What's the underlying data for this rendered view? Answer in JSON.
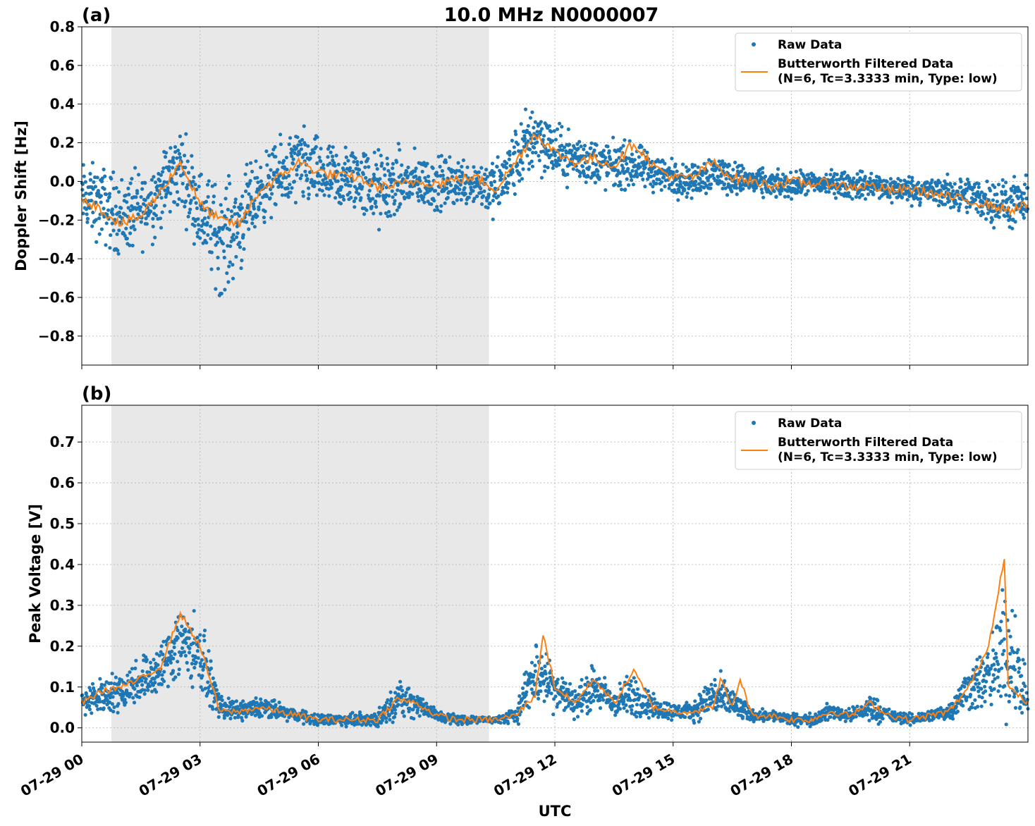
{
  "figure": {
    "title": "10.0 MHz N0000007",
    "xlabel": "UTC"
  },
  "legend": {
    "raw_label": "Raw Data",
    "filtered_line1": "Butterworth Filtered Data",
    "filtered_line2": "(N=6, Tc=3.3333 min, Type: low)"
  },
  "colors": {
    "raw": "#1f77b4",
    "filtered": "#ff7f0e",
    "shade": "#e8e8e8",
    "grid": "#b0b0b0"
  },
  "chart_data": [
    {
      "type": "scatter",
      "panel_label": "(a)",
      "title": "10.0 MHz N0000007",
      "ylabel": "Doppler Shift [Hz]",
      "xlabel": "",
      "xlim": [
        0,
        24
      ],
      "ylim": [
        -0.95,
        0.8
      ],
      "x_unit": "hours UTC on 07-29",
      "yticks": [
        -0.8,
        -0.6,
        -0.4,
        -0.2,
        0.0,
        0.2,
        0.4,
        0.6,
        0.8
      ],
      "ytick_labels": [
        "−0.8",
        "−0.6",
        "−0.4",
        "−0.2",
        "0.0",
        "0.2",
        "0.4",
        "0.6",
        "0.8"
      ],
      "shaded_interval": [
        0.75,
        10.33
      ],
      "grid": true,
      "legend_position": "top-right",
      "series": [
        {
          "name": "Raw Data",
          "style": "points",
          "color": "#1f77b4",
          "x": [
            0.0,
            0.5,
            1.0,
            1.5,
            2.0,
            2.5,
            3.0,
            3.5,
            4.0,
            4.5,
            5.0,
            5.5,
            6.0,
            6.5,
            7.0,
            7.5,
            8.0,
            8.5,
            9.0,
            9.5,
            10.0,
            10.5,
            11.0,
            11.5,
            12.0,
            12.5,
            13.0,
            13.5,
            14.0,
            14.5,
            15.0,
            15.5,
            16.0,
            16.5,
            17.0,
            17.5,
            18.0,
            18.5,
            19.0,
            19.5,
            20.0,
            20.5,
            21.0,
            21.5,
            22.0,
            22.5,
            23.0,
            23.5,
            24.0
          ],
          "center": [
            -0.08,
            -0.12,
            -0.18,
            -0.15,
            -0.05,
            0.08,
            -0.15,
            -0.3,
            -0.22,
            -0.05,
            0.02,
            0.08,
            0.04,
            0.0,
            0.02,
            -0.05,
            -0.02,
            0.0,
            -0.02,
            0.0,
            0.0,
            -0.05,
            0.1,
            0.25,
            0.15,
            0.12,
            0.1,
            0.08,
            0.08,
            0.05,
            0.02,
            0.0,
            0.05,
            0.02,
            0.0,
            -0.02,
            -0.02,
            -0.01,
            -0.01,
            -0.02,
            -0.02,
            -0.04,
            -0.04,
            -0.05,
            -0.06,
            -0.08,
            -0.1,
            -0.12,
            -0.12
          ],
          "spread": [
            0.25,
            0.28,
            0.3,
            0.28,
            0.28,
            0.3,
            0.3,
            0.4,
            0.35,
            0.25,
            0.25,
            0.3,
            0.25,
            0.25,
            0.25,
            0.3,
            0.25,
            0.2,
            0.2,
            0.18,
            0.18,
            0.22,
            0.25,
            0.28,
            0.2,
            0.18,
            0.18,
            0.18,
            0.16,
            0.15,
            0.13,
            0.12,
            0.15,
            0.12,
            0.1,
            0.1,
            0.09,
            0.09,
            0.09,
            0.1,
            0.1,
            0.1,
            0.1,
            0.1,
            0.12,
            0.14,
            0.16,
            0.18,
            0.18
          ]
        },
        {
          "name": "Butterworth Filtered Data\n(N=6, Tc=3.3333 min, Type: low)",
          "style": "line",
          "color": "#ff7f0e",
          "x": [
            0.0,
            0.5,
            1.0,
            1.5,
            2.0,
            2.5,
            3.0,
            3.5,
            4.0,
            4.5,
            5.0,
            5.5,
            6.0,
            6.5,
            7.0,
            7.5,
            8.0,
            8.5,
            9.0,
            9.5,
            10.0,
            10.5,
            11.0,
            11.5,
            12.0,
            12.5,
            13.0,
            13.5,
            14.0,
            14.5,
            15.0,
            15.5,
            16.0,
            16.5,
            17.0,
            17.5,
            18.0,
            18.5,
            19.0,
            19.5,
            20.0,
            20.5,
            21.0,
            21.5,
            22.0,
            22.5,
            23.0,
            23.5,
            24.0
          ],
          "y": [
            -0.08,
            -0.15,
            -0.22,
            -0.18,
            -0.05,
            0.1,
            -0.12,
            -0.2,
            -0.22,
            -0.05,
            0.02,
            0.1,
            0.05,
            0.03,
            0.02,
            -0.03,
            -0.02,
            0.0,
            -0.01,
            0.01,
            0.02,
            -0.04,
            0.1,
            0.25,
            0.15,
            0.1,
            0.12,
            0.08,
            0.2,
            0.08,
            0.02,
            0.02,
            0.1,
            0.02,
            0.0,
            -0.02,
            0.0,
            -0.01,
            -0.01,
            -0.03,
            -0.02,
            -0.05,
            -0.04,
            -0.06,
            -0.08,
            -0.1,
            -0.12,
            -0.15,
            -0.12
          ]
        }
      ]
    },
    {
      "type": "scatter",
      "panel_label": "(b)",
      "title": "",
      "ylabel": "Peak Voltage [V]",
      "xlabel": "UTC",
      "xlim": [
        0,
        24
      ],
      "ylim": [
        -0.035,
        0.79
      ],
      "x_unit": "hours UTC on 07-29",
      "xticks": [
        0,
        3,
        6,
        9,
        12,
        15,
        18,
        21
      ],
      "xtick_labels": [
        "07-29 00",
        "07-29 03",
        "07-29 06",
        "07-29 09",
        "07-29 12",
        "07-29 15",
        "07-29 18",
        "07-29 21"
      ],
      "yticks": [
        0.0,
        0.1,
        0.2,
        0.3,
        0.4,
        0.5,
        0.6,
        0.7
      ],
      "ytick_labels": [
        "0.0",
        "0.1",
        "0.2",
        "0.3",
        "0.4",
        "0.5",
        "0.6",
        "0.7"
      ],
      "shaded_interval": [
        0.75,
        10.33
      ],
      "grid": true,
      "legend_position": "top-right",
      "series": [
        {
          "name": "Raw Data",
          "style": "points",
          "color": "#1f77b4",
          "x": [
            0.0,
            0.5,
            1.0,
            1.5,
            2.0,
            2.5,
            3.0,
            3.5,
            4.0,
            4.5,
            5.0,
            5.5,
            6.0,
            6.5,
            7.0,
            7.5,
            8.0,
            8.5,
            9.0,
            9.5,
            10.0,
            10.5,
            11.0,
            11.5,
            12.0,
            12.5,
            13.0,
            13.5,
            14.0,
            14.5,
            15.0,
            15.5,
            16.0,
            16.5,
            17.0,
            17.5,
            18.0,
            18.5,
            19.0,
            19.5,
            20.0,
            20.5,
            21.0,
            21.5,
            22.0,
            22.5,
            23.0,
            23.5,
            24.0
          ],
          "center": [
            0.06,
            0.08,
            0.09,
            0.12,
            0.14,
            0.22,
            0.18,
            0.05,
            0.04,
            0.05,
            0.04,
            0.03,
            0.02,
            0.02,
            0.02,
            0.02,
            0.07,
            0.06,
            0.03,
            0.02,
            0.02,
            0.02,
            0.03,
            0.14,
            0.1,
            0.06,
            0.1,
            0.06,
            0.08,
            0.05,
            0.04,
            0.04,
            0.08,
            0.06,
            0.03,
            0.03,
            0.02,
            0.02,
            0.04,
            0.03,
            0.05,
            0.03,
            0.02,
            0.03,
            0.04,
            0.1,
            0.12,
            0.2,
            0.06
          ],
          "spread": [
            0.05,
            0.06,
            0.07,
            0.08,
            0.09,
            0.15,
            0.12,
            0.04,
            0.03,
            0.04,
            0.03,
            0.02,
            0.02,
            0.02,
            0.02,
            0.03,
            0.06,
            0.05,
            0.02,
            0.02,
            0.01,
            0.01,
            0.03,
            0.12,
            0.08,
            0.05,
            0.08,
            0.05,
            0.08,
            0.04,
            0.03,
            0.03,
            0.08,
            0.06,
            0.02,
            0.02,
            0.02,
            0.02,
            0.03,
            0.02,
            0.05,
            0.02,
            0.02,
            0.02,
            0.03,
            0.08,
            0.12,
            0.25,
            0.05
          ]
        },
        {
          "name": "Butterworth Filtered Data\n(N=6, Tc=3.3333 min, Type: low)",
          "style": "line",
          "color": "#ff7f0e",
          "x": [
            0.0,
            0.5,
            1.0,
            1.5,
            2.0,
            2.5,
            3.0,
            3.5,
            4.0,
            4.5,
            5.0,
            5.5,
            6.0,
            6.5,
            7.0,
            7.5,
            8.0,
            8.5,
            9.0,
            9.5,
            10.0,
            10.5,
            11.0,
            11.5,
            11.7,
            12.0,
            12.5,
            13.0,
            13.5,
            14.0,
            14.5,
            15.0,
            15.5,
            16.0,
            16.2,
            16.5,
            16.7,
            17.0,
            17.5,
            18.0,
            18.5,
            19.0,
            19.5,
            20.0,
            20.5,
            21.0,
            21.5,
            22.0,
            22.5,
            23.0,
            23.4,
            23.5,
            24.0
          ],
          "y": [
            0.06,
            0.09,
            0.1,
            0.12,
            0.15,
            0.28,
            0.2,
            0.04,
            0.04,
            0.05,
            0.04,
            0.03,
            0.02,
            0.02,
            0.02,
            0.02,
            0.07,
            0.06,
            0.03,
            0.02,
            0.02,
            0.02,
            0.03,
            0.08,
            0.23,
            0.1,
            0.06,
            0.12,
            0.06,
            0.14,
            0.05,
            0.04,
            0.04,
            0.05,
            0.12,
            0.05,
            0.12,
            0.03,
            0.03,
            0.02,
            0.02,
            0.04,
            0.03,
            0.06,
            0.03,
            0.02,
            0.03,
            0.04,
            0.1,
            0.2,
            0.42,
            0.1,
            0.06
          ]
        }
      ]
    }
  ]
}
